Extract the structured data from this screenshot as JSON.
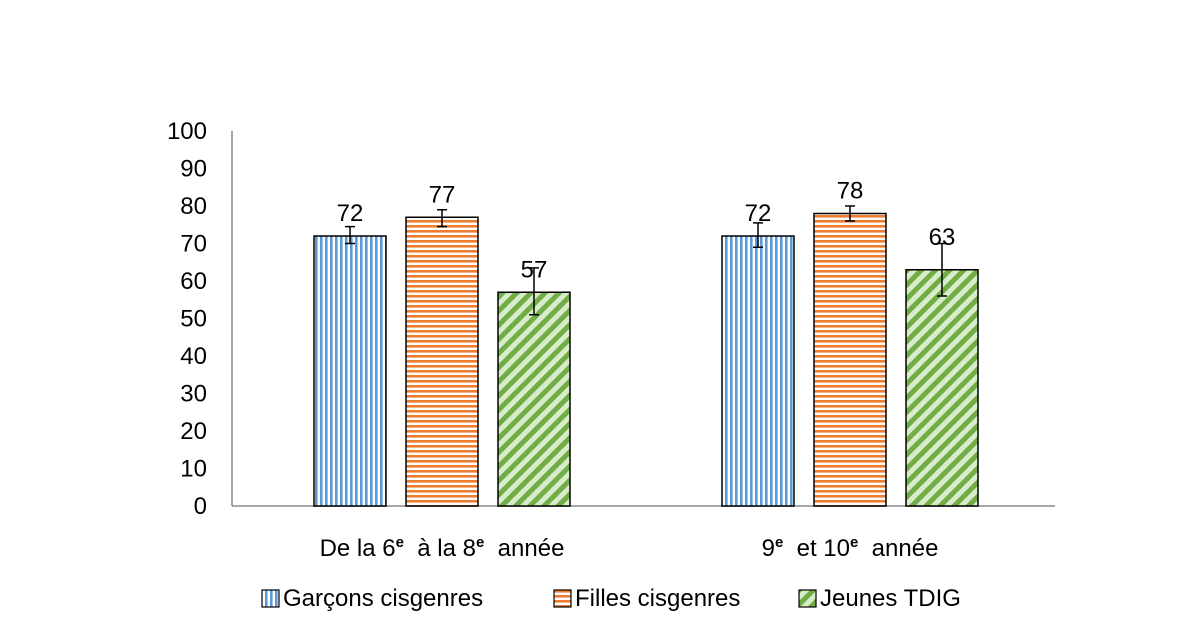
{
  "chart_data": {
    "type": "bar",
    "title": "",
    "xlabel": "",
    "ylabel": "",
    "ylim": [
      0,
      100
    ],
    "yticks": [
      0,
      10,
      20,
      30,
      40,
      50,
      60,
      70,
      80,
      90,
      100
    ],
    "grid": false,
    "legend_position": "bottom",
    "categories": [
      {
        "parts": [
          {
            "t": "De la 6"
          },
          {
            "sup": "e"
          },
          {
            "t": "  à la 8"
          },
          {
            "sup": "e"
          },
          {
            "t": "  année"
          }
        ]
      },
      {
        "parts": [
          {
            "t": "9"
          },
          {
            "sup": "e"
          },
          {
            "t": "  et 10"
          },
          {
            "sup": "e"
          },
          {
            "t": "  année"
          }
        ]
      }
    ],
    "series": [
      {
        "name": "Garçons cisgenres",
        "pattern": "vertical-stripes",
        "color": "#5b9bd5",
        "values": [
          72,
          72
        ],
        "error_low": [
          70,
          69
        ],
        "error_high": [
          74.5,
          75.5
        ],
        "labels": [
          "72",
          "72"
        ]
      },
      {
        "name": "Filles cisgenres",
        "pattern": "horizontal-stripes",
        "color": "#ed7d31",
        "values": [
          77,
          78
        ],
        "error_low": [
          74.5,
          76
        ],
        "error_high": [
          79,
          80
        ],
        "labels": [
          "77",
          "78"
        ]
      },
      {
        "name": "Jeunes TDIG",
        "pattern": "diagonal-stripes",
        "color": "#70ad47",
        "values": [
          57,
          63
        ],
        "error_low": [
          51,
          56
        ],
        "error_high": [
          63.5,
          70
        ],
        "labels": [
          "57",
          "63"
        ]
      }
    ]
  }
}
